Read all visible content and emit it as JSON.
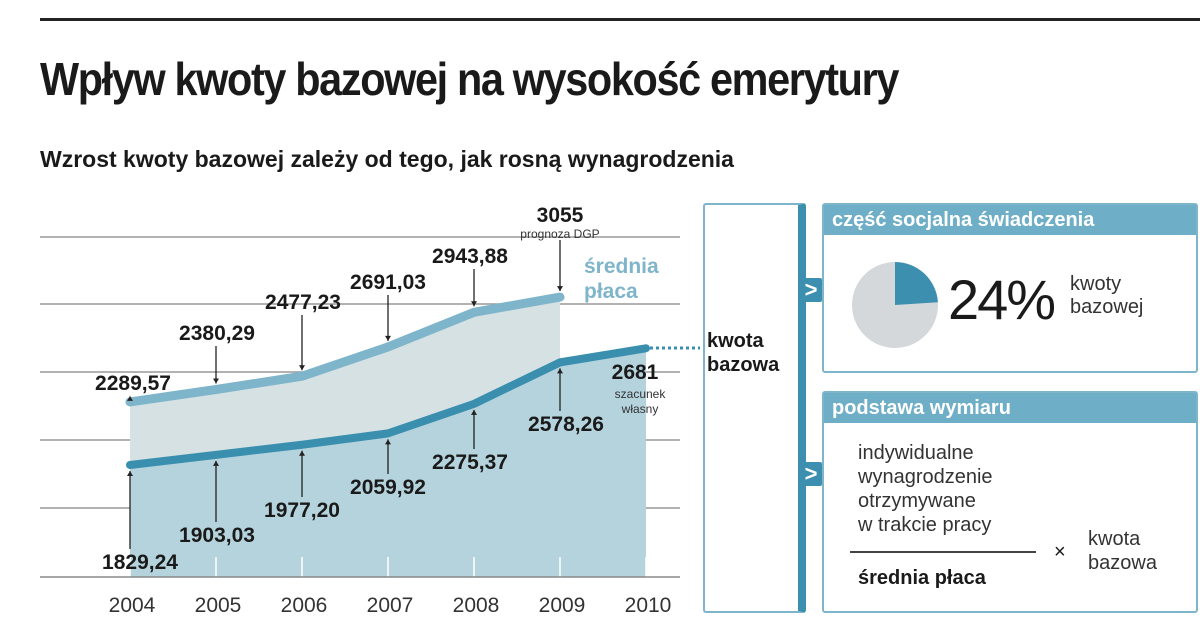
{
  "title": "Wpływ kwoty bazowej na wysokość emerytury",
  "subtitle": "Wzrost kwoty bazowej zależy od tego, jak rosną wynagrodzenia",
  "chart_data": {
    "type": "area",
    "categories": [
      "2004",
      "2005",
      "2006",
      "2007",
      "2008",
      "2009",
      "2010"
    ],
    "series": [
      {
        "name": "średnia płaca",
        "values": [
          2289.57,
          2380.29,
          2477.23,
          2691.03,
          2943.88,
          3055,
          null
        ],
        "labels": [
          "2289,57",
          "2380,29",
          "2477,23",
          "2691,03",
          "2943,88",
          "3055",
          ""
        ],
        "color": "#7fb5cb",
        "fill": "#d6e1e4"
      },
      {
        "name": "kwota bazowa",
        "values": [
          1829.24,
          1903.03,
          1977.2,
          2059.92,
          2275.37,
          2578.26,
          2681
        ],
        "labels": [
          "1829,24",
          "1903,03",
          "1977,20",
          "2059,92",
          "2275,37",
          "2578,26",
          "2681"
        ],
        "color": "#3a8fae",
        "fill": "#b5d3dd"
      }
    ],
    "annotations": {
      "forecast_2009": "prognoza DGP",
      "estimate_2010_line1": "szacunek",
      "estimate_2010_line2": "własny"
    },
    "legend_label_line1": "średnia",
    "legend_label_line2": "płaca",
    "grid": true
  },
  "panel": {
    "kwota_line1": "kwota",
    "kwota_line2": "bazowa",
    "social": {
      "header": "część socjalna świadczenia",
      "percent": "24%",
      "value": 24,
      "text1": "kwoty",
      "text2": "bazowej"
    },
    "basis": {
      "header": "podstawa wymiaru",
      "num": [
        "indywidualne",
        "wynagrodzenie",
        "otrzymywane",
        "w trakcie pracy"
      ],
      "den": "średnia płaca",
      "times": "×",
      "k1": "kwota",
      "k2": "bazowa"
    },
    "chevron": ">"
  }
}
